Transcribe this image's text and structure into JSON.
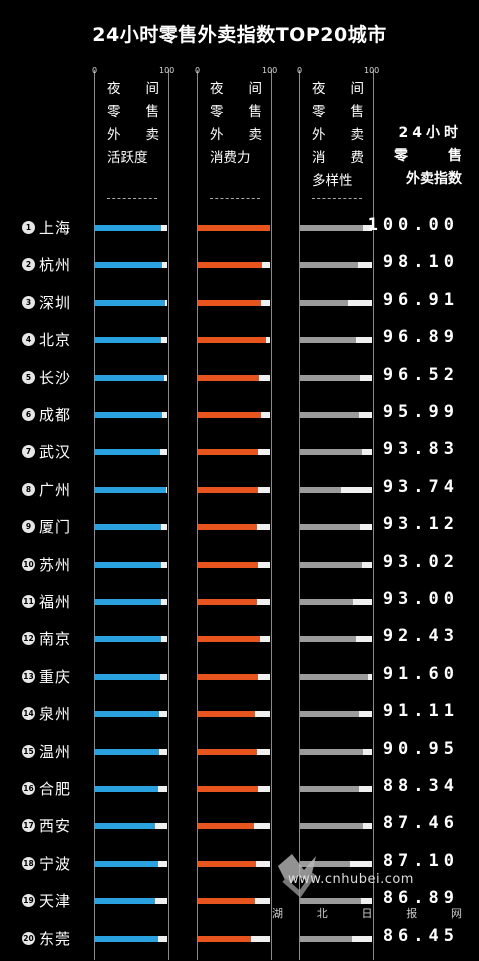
{
  "title": "24小时零售外卖指数TOP20城市",
  "colors": {
    "activity": "#2aa2e0",
    "consumption": "#e8541e",
    "diversity": "#9b9b9b",
    "track": "#f0f0f0"
  },
  "columns": [
    {
      "key": "activity",
      "tick_min": "0",
      "tick_max": "100",
      "header_rows": [
        [
          "夜",
          "间"
        ],
        [
          "零",
          "售"
        ],
        [
          "外",
          "卖"
        ],
        [
          "活跃度"
        ]
      ]
    },
    {
      "key": "consumption",
      "tick_min": "0",
      "tick_max": "100",
      "header_rows": [
        [
          "夜",
          "间"
        ],
        [
          "零",
          "售"
        ],
        [
          "外",
          "卖"
        ],
        [
          "消费力"
        ]
      ]
    },
    {
      "key": "diversity",
      "tick_min": "0",
      "tick_max": "100",
      "header_rows": [
        [
          "夜",
          "间"
        ],
        [
          "零",
          "售"
        ],
        [
          "外",
          "卖"
        ],
        [
          "消",
          "费"
        ],
        [
          "多样性"
        ]
      ]
    }
  ],
  "index_header": {
    "line1": "24小时",
    "line2a": "零",
    "line2b": "售",
    "line3": "外卖指数"
  },
  "chart_data": {
    "type": "bar",
    "title": "24小时零售外卖指数TOP20城市",
    "categories": [
      "上海",
      "杭州",
      "深圳",
      "北京",
      "长沙",
      "成都",
      "武汉",
      "广州",
      "厦门",
      "苏州",
      "福州",
      "南京",
      "重庆",
      "泉州",
      "温州",
      "合肥",
      "西安",
      "宁波",
      "天津",
      "东莞"
    ],
    "series": [
      {
        "name": "夜间零售外卖活跃度",
        "values": [
          91,
          93,
          97,
          92,
          96,
          93,
          90,
          98,
          92,
          91,
          91,
          91,
          90,
          89,
          89,
          87,
          83,
          88,
          83,
          87
        ]
      },
      {
        "name": "夜间零售外卖消费力",
        "values": [
          100,
          89,
          88,
          95,
          85,
          87,
          84,
          83,
          82,
          84,
          82,
          86,
          83,
          79,
          82,
          84,
          78,
          80,
          79,
          74
        ]
      },
      {
        "name": "夜间零售外卖消费多样性",
        "values": [
          87,
          81,
          67,
          78,
          84,
          82,
          86,
          57,
          84,
          86,
          73,
          78,
          94,
          82,
          88,
          82,
          88,
          70,
          85,
          72
        ]
      }
    ],
    "index_values": [
      "100.00",
      "98.10",
      "96.91",
      "96.89",
      "96.52",
      "95.99",
      "93.83",
      "93.74",
      "93.12",
      "93.02",
      "93.00",
      "92.43",
      "91.60",
      "91.11",
      "90.95",
      "88.34",
      "87.46",
      "87.10",
      "86.89",
      "86.45"
    ],
    "xlim": [
      0,
      100
    ]
  },
  "watermark": {
    "url": "www.cnhubei.com",
    "brand": [
      "湖",
      "北",
      "日",
      "报",
      "网"
    ]
  }
}
